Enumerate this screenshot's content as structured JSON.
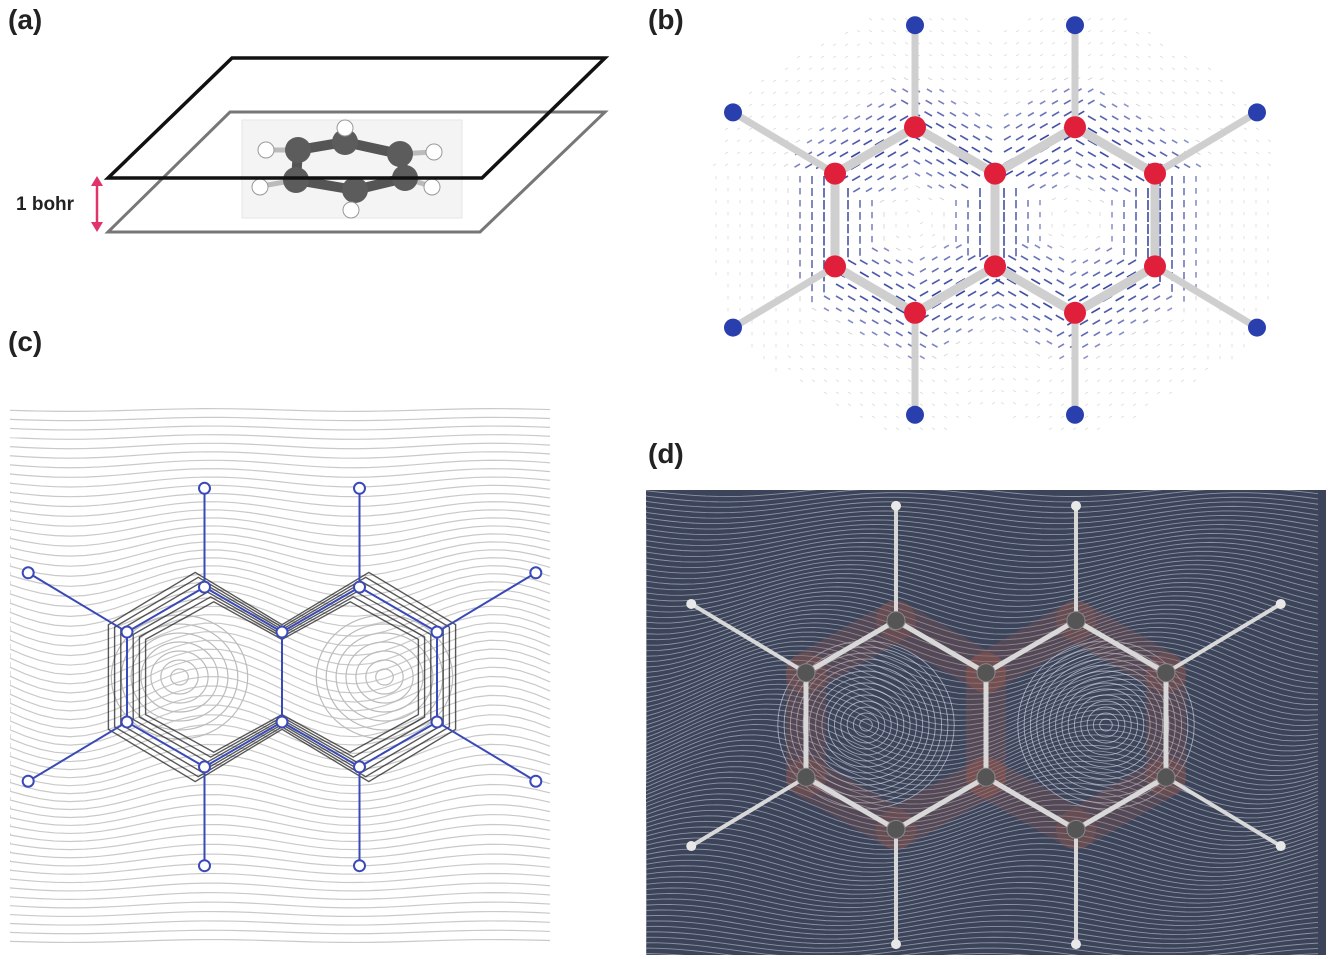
{
  "panels": {
    "a": {
      "label": "(a)",
      "distance_label": "1 bohr"
    },
    "b": {
      "label": "(b)"
    },
    "c": {
      "label": "(c)"
    },
    "d": {
      "label": "(d)"
    }
  },
  "colors": {
    "plane_upper": "#111111",
    "plane_lower": "#777777",
    "arrow_bohr": "#e0336a",
    "vector_field": "#2c3a9a",
    "carbon_marker": "#e0203a",
    "hydrogen_marker": "#2a3fae",
    "streamline_dark": "#222222",
    "streamline_light": "#c9c9c9",
    "graph_lines": "#3a49b8",
    "lic_background": "#3c4459",
    "lic_highlight": "#9a5a50",
    "bond_gray": "#d8d8d8"
  },
  "icons": {
    "molecule_3d": "benzene-ball-and-stick",
    "molecule_graph": "naphthalene-graph"
  }
}
